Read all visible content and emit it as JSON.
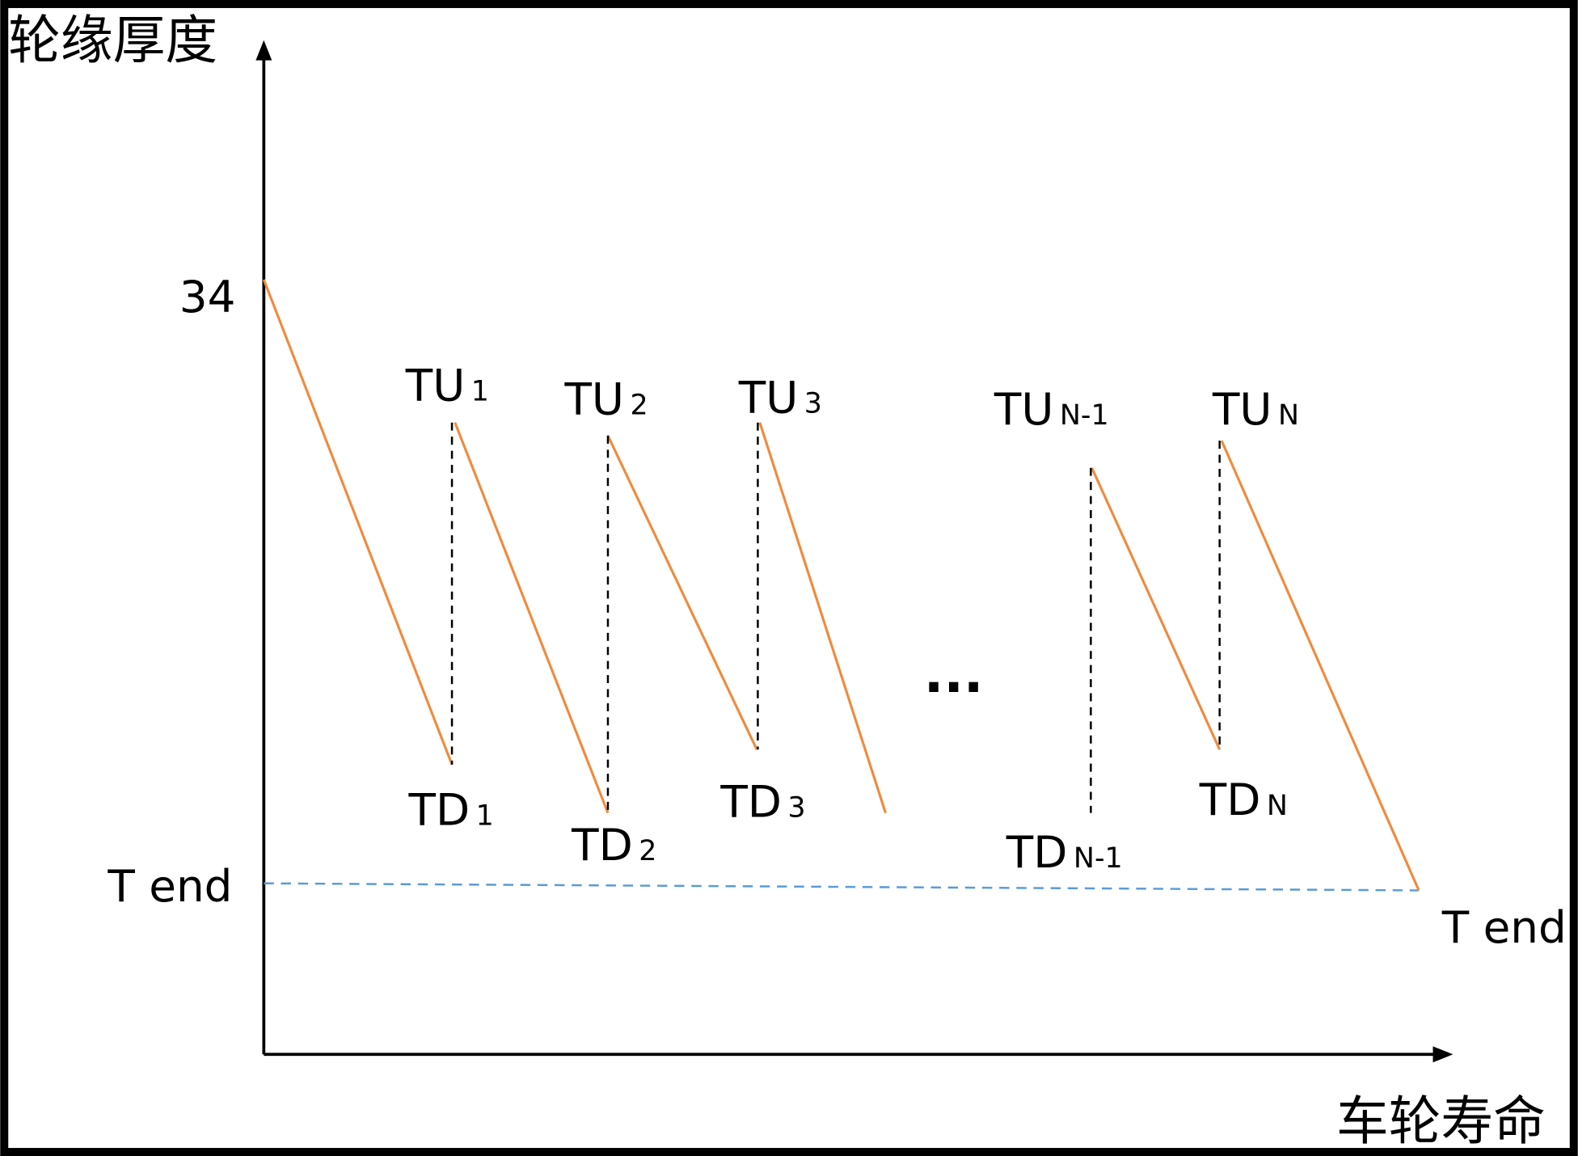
{
  "axes": {
    "y_label": "轮缘厚度",
    "x_label": "车轮寿命"
  },
  "y_marks": {
    "top": "34",
    "bottom": "T end"
  },
  "end_label": "T end",
  "peaks": [
    {
      "main": "TU",
      "sub": "1"
    },
    {
      "main": "TU",
      "sub": "2"
    },
    {
      "main": "TU",
      "sub": "3"
    },
    {
      "main": "TU",
      "sub": "N-1"
    },
    {
      "main": "TU",
      "sub": "N"
    }
  ],
  "troughs": [
    {
      "main": "TD",
      "sub": "1"
    },
    {
      "main": "TD",
      "sub": "2"
    },
    {
      "main": "TD",
      "sub": "3"
    },
    {
      "main": "TD",
      "sub": "N-1"
    },
    {
      "main": "TD",
      "sub": "N"
    }
  ],
  "ellipsis": "..."
}
